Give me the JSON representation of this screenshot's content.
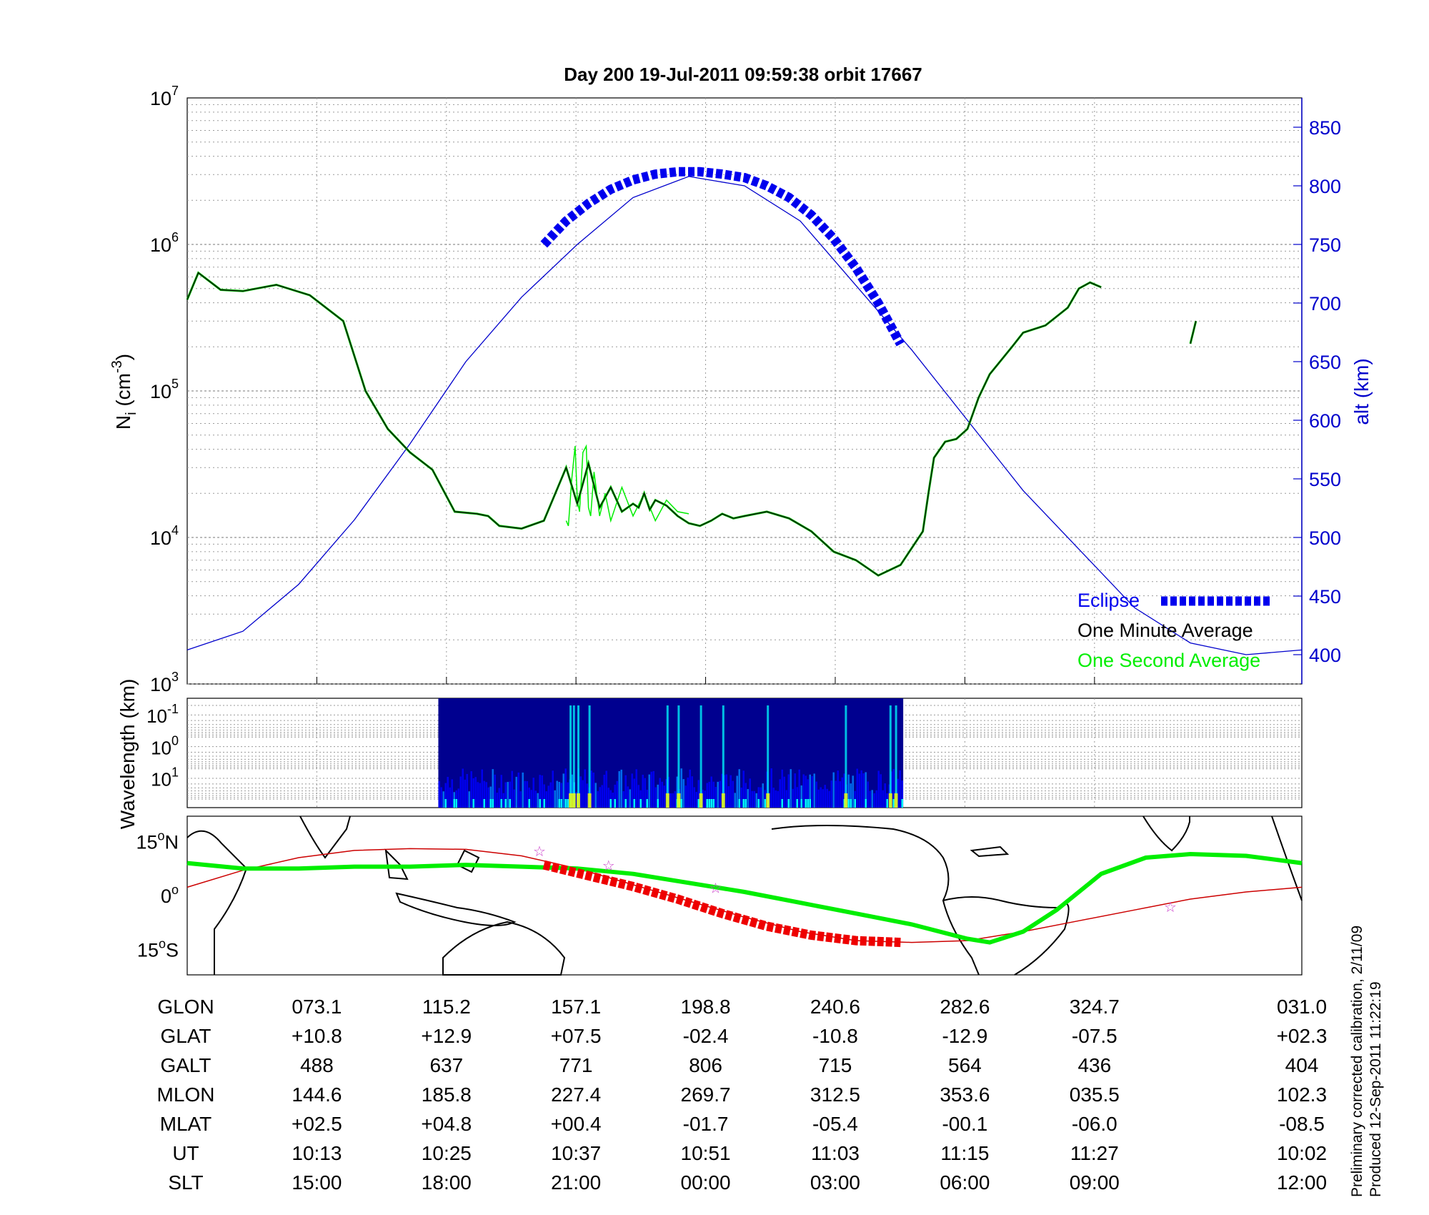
{
  "title": "Day 200  19-Jul-2011 09:59:38   orbit 17667",
  "chart_data": [
    {
      "type": "line",
      "panel": "density",
      "ylabel": "N_i (cm^-3)",
      "ylabel_base": "N",
      "ylabel_sub": "i",
      "ylabel_rest": " (cm",
      "ylabel_sup": "-3",
      "ylabel_end": ")",
      "y_scale": "log",
      "ylim": [
        1000,
        10000000
      ],
      "y_ticks": [
        {
          "base": "10",
          "exp": "3"
        },
        {
          "base": "10",
          "exp": "4"
        },
        {
          "base": "10",
          "exp": "5"
        },
        {
          "base": "10",
          "exp": "6"
        },
        {
          "base": "10",
          "exp": "7"
        }
      ],
      "y2label": "alt (km)",
      "y2lim": [
        375,
        875
      ],
      "y2_ticks": [
        "400",
        "450",
        "500",
        "550",
        "600",
        "650",
        "700",
        "750",
        "800",
        "850"
      ],
      "x_fraction_ticks": [
        0.1163,
        0.2326,
        0.3488,
        0.4651,
        0.5814,
        0.6977,
        0.814
      ],
      "grid": true,
      "series": [
        {
          "name": "One Minute Average",
          "color": "#000000",
          "x": [
            0,
            0.01,
            0.02,
            0.03,
            0.05,
            0.08,
            0.11,
            0.14,
            0.16,
            0.18,
            0.2,
            0.22,
            0.24,
            0.26,
            0.27,
            0.28,
            0.3,
            0.32,
            0.34,
            0.35,
            0.36,
            0.37,
            0.38,
            0.39,
            0.4,
            0.405,
            0.41,
            0.415,
            0.42,
            0.43,
            0.44,
            0.45,
            0.46,
            0.47,
            0.48,
            0.49,
            0.5,
            0.52,
            0.54,
            0.56,
            0.58,
            0.6,
            0.62,
            0.64,
            0.66,
            0.665,
            0.67,
            0.68,
            0.69,
            0.7,
            0.71,
            0.72,
            0.74,
            0.75,
            0.77,
            0.79,
            0.8,
            0.81,
            0.82,
            0.84,
            0.86,
            0.87,
            0.88,
            0.89,
            0.9,
            0.905
          ],
          "y": [
            420000,
            640000,
            560000,
            490000,
            480000,
            530000,
            450000,
            300000,
            100000,
            55000,
            38000,
            29000,
            15000,
            14500,
            14000,
            12000,
            11500,
            13000,
            30000,
            17000,
            32000,
            16000,
            22000,
            15000,
            17000,
            16000,
            20000,
            15500,
            18000,
            16500,
            14000,
            12500,
            12000,
            13000,
            14500,
            13500,
            14000,
            15000,
            13500,
            11000,
            8000,
            7000,
            5500,
            6500,
            11000,
            20000,
            35000,
            45000,
            47000,
            55000,
            90000,
            130000,
            200000,
            250000,
            280000,
            370000,
            500000,
            550000,
            510000,
            null,
            null,
            null,
            null,
            null,
            210000,
            300000
          ]
        },
        {
          "name": "One Second Average",
          "color": "#00ee00",
          "x": [
            0.34,
            0.342,
            0.345,
            0.348,
            0.35,
            0.352,
            0.355,
            0.358,
            0.36,
            0.362,
            0.365,
            0.37,
            0.375,
            0.38,
            0.39,
            0.4,
            0.41,
            0.42,
            0.43,
            0.44,
            0.45
          ],
          "y": [
            13000,
            12000,
            25000,
            42000,
            18000,
            15000,
            38000,
            42000,
            16000,
            14000,
            28000,
            14000,
            20000,
            13000,
            22000,
            14000,
            20000,
            13000,
            18000,
            15000,
            14500
          ]
        },
        {
          "name": "altitude",
          "color": "#0000cc",
          "x": [
            0,
            0.05,
            0.1,
            0.15,
            0.2,
            0.25,
            0.3,
            0.35,
            0.4,
            0.45,
            0.5,
            0.55,
            0.6,
            0.65,
            0.7,
            0.75,
            0.8,
            0.85,
            0.9,
            0.95,
            1.0
          ],
          "y": [
            404,
            420,
            460,
            515,
            580,
            650,
            705,
            750,
            790,
            808,
            800,
            770,
            715,
            660,
            600,
            540,
            490,
            440,
            410,
            400,
            404
          ]
        },
        {
          "name": "Eclipse",
          "color": "#0000ee",
          "x": [
            0.32,
            0.34,
            0.36,
            0.38,
            0.4,
            0.42,
            0.44,
            0.45,
            0.46,
            0.48,
            0.5,
            0.52,
            0.54,
            0.56,
            0.58,
            0.6,
            0.62,
            0.64
          ],
          "y": [
            750,
            770,
            785,
            797,
            805,
            810,
            812,
            812,
            812,
            810,
            807,
            800,
            790,
            775,
            755,
            730,
            700,
            665
          ]
        }
      ],
      "legend": [
        "Eclipse",
        "One Minute Average",
        "One Second Average"
      ],
      "legend_position": "lower-right"
    },
    {
      "type": "heatmap",
      "panel": "spectrogram",
      "ylabel": "Wavelength (km)",
      "y_ticks": [
        {
          "base": "10",
          "exp": "-1"
        },
        {
          "base": "10",
          "exp": "0"
        },
        {
          "base": "10",
          "exp": "1"
        }
      ],
      "data_x_range": [
        0.2253,
        0.6424
      ],
      "bright_columns": [
        0.343,
        0.346,
        0.35,
        0.36,
        0.43,
        0.44,
        0.46,
        0.48,
        0.52,
        0.59,
        0.63,
        0.635
      ],
      "colormap": [
        "#00008f",
        "#0000ff",
        "#0080ff",
        "#00ffff",
        "#80ff80",
        "#ffff00"
      ]
    },
    {
      "type": "line",
      "panel": "map",
      "y_ticks": [
        {
          "deg": "15",
          "sym": "o",
          "hem": "N"
        },
        {
          "deg": "0",
          "sym": "o",
          "hem": ""
        },
        {
          "deg": "15",
          "sym": "o",
          "hem": "S"
        }
      ],
      "ylim": [
        -22,
        22
      ],
      "series": [
        {
          "name": "magnetic equator",
          "color": "#00ee00",
          "x": [
            0,
            0.05,
            0.1,
            0.15,
            0.2,
            0.25,
            0.3,
            0.35,
            0.4,
            0.45,
            0.5,
            0.55,
            0.6,
            0.65,
            0.7,
            0.72,
            0.75,
            0.78,
            0.82,
            0.86,
            0.9,
            0.95,
            1.0
          ],
          "y": [
            9,
            7.5,
            7.5,
            8,
            8,
            8.5,
            8,
            7.5,
            6,
            3.5,
            1,
            -2,
            -5,
            -8,
            -12,
            -13,
            -10,
            -4,
            6,
            10.5,
            11.5,
            11,
            9
          ]
        },
        {
          "name": "orbit ground track",
          "color": "#cc0000",
          "x": [
            0,
            0.05,
            0.1,
            0.15,
            0.2,
            0.25,
            0.3,
            0.35,
            0.4,
            0.45,
            0.5,
            0.55,
            0.6,
            0.65,
            0.7,
            0.75,
            0.8,
            0.85,
            0.9,
            0.95,
            1.0
          ],
          "y": [
            2.3,
            7,
            10.5,
            12.5,
            13,
            12.8,
            11,
            7.5,
            3,
            -1.5,
            -6,
            -10,
            -12.5,
            -13,
            -12.5,
            -10,
            -7,
            -4,
            -1,
            1,
            2.3
          ]
        },
        {
          "name": "eclipse track",
          "color": "#ee0000",
          "x": [
            0.32,
            0.36,
            0.4,
            0.44,
            0.48,
            0.52,
            0.56,
            0.6,
            0.64
          ],
          "y": [
            8.5,
            5.5,
            2.5,
            -1,
            -5,
            -8.5,
            -11,
            -12.5,
            -13
          ]
        },
        {
          "name": "stars",
          "color": "#cc44cc",
          "x": [
            0.316,
            0.378,
            0.474,
            0.882
          ],
          "y": [
            12.5,
            8.5,
            2.3,
            -3
          ]
        }
      ]
    }
  ],
  "table": {
    "row_labels": [
      "GLON",
      "GLAT",
      "GALT",
      "MLON",
      "MLAT",
      "UT",
      "SLT"
    ],
    "col_fractions": [
      0.1163,
      0.2326,
      0.3488,
      0.4651,
      0.5814,
      0.6977,
      0.814,
      1.0
    ],
    "rows": [
      [
        "073.1",
        "115.2",
        "157.1",
        "198.8",
        "240.6",
        "282.6",
        "324.7",
        "031.0"
      ],
      [
        "+10.8",
        "+12.9",
        "+07.5",
        "-02.4",
        "-10.8",
        "-12.9",
        "-07.5",
        "+02.3"
      ],
      [
        "488",
        "637",
        "771",
        "806",
        "715",
        "564",
        "436",
        "404"
      ],
      [
        "144.6",
        "185.8",
        "227.4",
        "269.7",
        "312.5",
        "353.6",
        "035.5",
        "102.3"
      ],
      [
        "+02.5",
        "+04.8",
        "+00.4",
        "-01.7",
        "-05.4",
        "-00.1",
        "-06.0",
        "-08.5"
      ],
      [
        "10:13",
        "10:25",
        "10:37",
        "10:51",
        "11:03",
        "11:15",
        "11:27",
        "10:02"
      ],
      [
        "15:00",
        "18:00",
        "21:00",
        "00:00",
        "03:00",
        "06:00",
        "09:00",
        "12:00"
      ]
    ]
  },
  "credits": [
    "Preliminary corrected calibration, 2/11/09",
    "Produced 12-Sep-2011 11:22:19"
  ],
  "colors": {
    "density_line": "#000000",
    "second_line": "#00ee00",
    "altitude": "#0000cc",
    "eclipse": "#0000ee",
    "map_track": "#00ee00",
    "orbit_track": "#cc0000"
  }
}
